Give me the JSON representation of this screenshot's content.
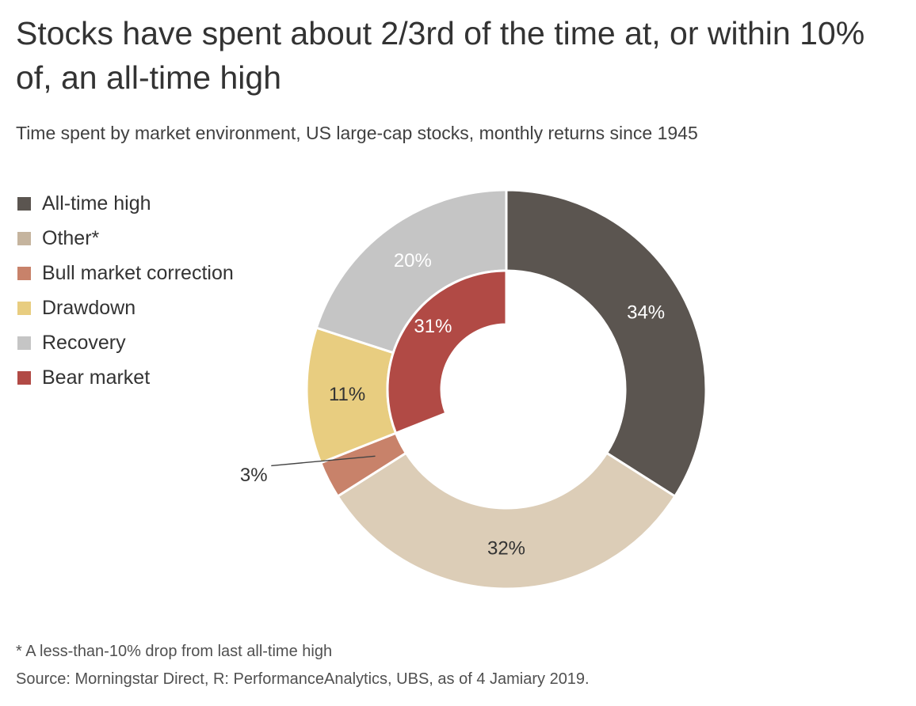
{
  "title": "Stocks have spent about 2/3rd of the time at, or within 10% of, an all-time high",
  "subtitle": "Time spent by market environment, US large-cap stocks, monthly returns since 1945",
  "footnote": "* A less-than-10% drop from last all-time high",
  "source": "Source: Morningstar Direct, R: PerformanceAnalytics, UBS, as of 4 Jamiary 2019.",
  "chart_data": {
    "type": "pie",
    "style": "donut",
    "legend_position": "left",
    "outer_ring": [
      {
        "name": "All-time high",
        "value": 34,
        "label": "34%",
        "color": "#5b5550",
        "label_color": "#ffffff"
      },
      {
        "name": "Other*",
        "value": 32,
        "label": "32%",
        "color": "#dccdb7",
        "label_color": "#333333"
      },
      {
        "name": "Bull market correction",
        "value": 3,
        "label": "3%",
        "color": "#c8826a",
        "label_color": "#333333"
      },
      {
        "name": "Drawdown",
        "value": 11,
        "label": "11%",
        "color": "#e8cd80",
        "label_color": "#333333"
      },
      {
        "name": "Recovery",
        "value": 20,
        "label": "20%",
        "color": "#c5c5c5",
        "label_color": "#ffffff"
      }
    ],
    "inner_ring": [
      {
        "name": "Bear market",
        "value": 31,
        "label": "31%",
        "color": "#b14a45",
        "label_color": "#ffffff",
        "start_value": 69
      }
    ],
    "legend": [
      {
        "name": "All-time high",
        "color": "#5b5550"
      },
      {
        "name": "Other*",
        "color": "#c5b49e"
      },
      {
        "name": "Bull market correction",
        "color": "#c8826a"
      },
      {
        "name": "Drawdown",
        "color": "#e8cd80"
      },
      {
        "name": "Recovery",
        "color": "#c5c5c5"
      },
      {
        "name": "Bear market",
        "color": "#b14a45"
      }
    ]
  }
}
